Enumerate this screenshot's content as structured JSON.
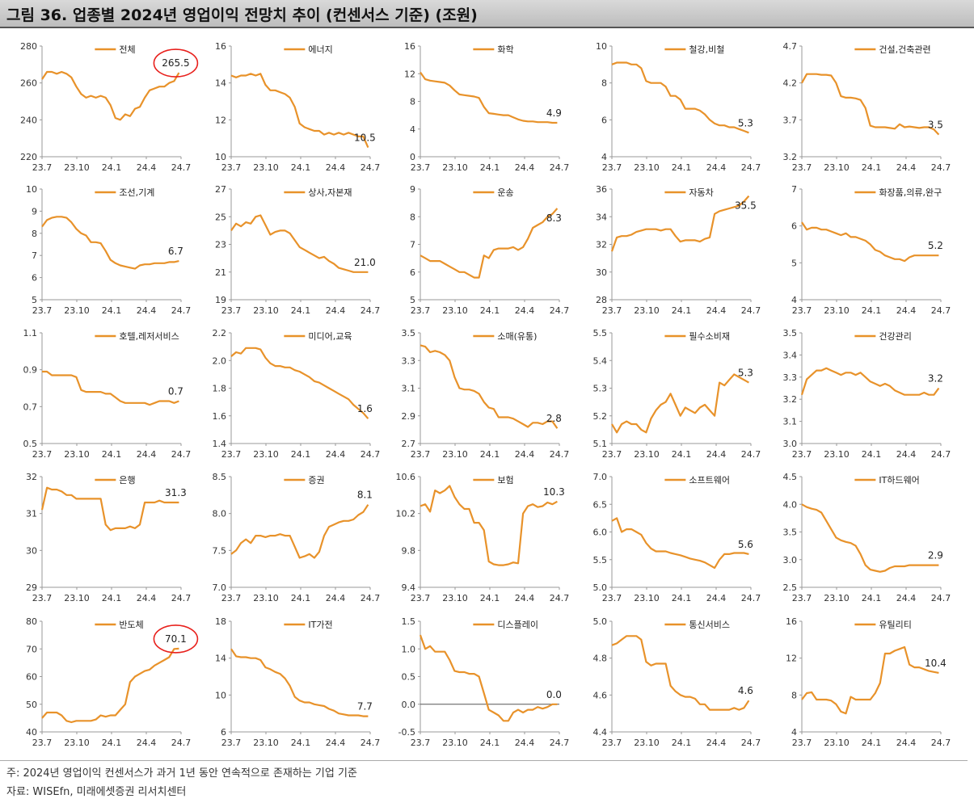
{
  "title": "그림 36. 업종별 2024년 영업이익 전망치 추이 (컨센서스 기준) (조원)",
  "footnote": "주: 2024년 영업이익 컨센서스가 과거 1년 동안 연속적으로 존재하는 기업 기준",
  "source": "자료: WISEfn, 미래에셋증권 리서치센터",
  "colors": {
    "line": "#E8922A",
    "annotation": "#E8201C",
    "axis": "#999999"
  },
  "chart_data": [
    {
      "type": "line",
      "title": "전체",
      "yticks": [
        "280",
        "260",
        "240",
        "220"
      ],
      "ylim": [
        220,
        280
      ],
      "xticks": [
        "23.7",
        "23.10",
        "24.1",
        "24.4",
        "24.7"
      ],
      "last_label": "265.5",
      "circled": true,
      "values": [
        262,
        266,
        266,
        265,
        266,
        265,
        263,
        258,
        254,
        252,
        253,
        252,
        253,
        252,
        248,
        241,
        240,
        243,
        242,
        246,
        247,
        252,
        256,
        257,
        258,
        258,
        260,
        261,
        265.5
      ]
    },
    {
      "type": "line",
      "title": "에너지",
      "yticks": [
        "16",
        "14",
        "12",
        "10"
      ],
      "ylim": [
        10,
        16
      ],
      "xticks": [
        "23.7",
        "23.10",
        "24.1",
        "24.4",
        "24.7"
      ],
      "last_label": "10.5",
      "circled": false,
      "values": [
        14.4,
        14.3,
        14.4,
        14.4,
        14.5,
        14.4,
        14.5,
        13.9,
        13.6,
        13.6,
        13.5,
        13.4,
        13.2,
        12.7,
        11.8,
        11.6,
        11.5,
        11.4,
        11.4,
        11.2,
        11.3,
        11.2,
        11.3,
        11.2,
        11.3,
        11.2,
        11.1,
        11.1,
        10.5
      ]
    },
    {
      "type": "line",
      "title": "화학",
      "yticks": [
        "16",
        "12",
        "8",
        "4",
        "0"
      ],
      "ylim": [
        0,
        16
      ],
      "xticks": [
        "23.7",
        "23.10",
        "24.1",
        "24.4",
        "24.7"
      ],
      "last_label": "4.9",
      "circled": false,
      "values": [
        12.2,
        11.2,
        11.0,
        10.9,
        10.8,
        10.7,
        10.3,
        9.6,
        9.0,
        8.9,
        8.8,
        8.7,
        8.5,
        7.2,
        6.3,
        6.2,
        6.1,
        6.0,
        6.0,
        5.7,
        5.4,
        5.2,
        5.1,
        5.1,
        5.0,
        5.0,
        5.0,
        4.9,
        4.9
      ]
    },
    {
      "type": "line",
      "title": "철강,비철",
      "yticks": [
        "10",
        "8",
        "6",
        "4"
      ],
      "ylim": [
        4,
        10
      ],
      "xticks": [
        "23.7",
        "23.10",
        "24.1",
        "24.4",
        "24.7"
      ],
      "last_label": "5.3",
      "circled": false,
      "values": [
        9.0,
        9.1,
        9.1,
        9.1,
        9.0,
        9.0,
        8.8,
        8.1,
        8.0,
        8.0,
        8.0,
        7.8,
        7.3,
        7.3,
        7.1,
        6.6,
        6.6,
        6.6,
        6.5,
        6.3,
        6.0,
        5.8,
        5.7,
        5.7,
        5.6,
        5.6,
        5.5,
        5.4,
        5.3
      ]
    },
    {
      "type": "line",
      "title": "건설,건축관련",
      "yticks": [
        "4.7",
        "4.2",
        "3.7",
        "3.2"
      ],
      "ylim": [
        3.2,
        4.7
      ],
      "xticks": [
        "23.7",
        "23.10",
        "24.1",
        "24.4",
        "24.7"
      ],
      "last_label": "3.5",
      "circled": false,
      "values": [
        4.2,
        4.32,
        4.32,
        4.32,
        4.31,
        4.31,
        4.3,
        4.2,
        4.02,
        4.0,
        4.0,
        3.99,
        3.97,
        3.86,
        3.62,
        3.6,
        3.6,
        3.6,
        3.59,
        3.58,
        3.64,
        3.6,
        3.61,
        3.6,
        3.59,
        3.6,
        3.6,
        3.57,
        3.5
      ]
    },
    {
      "type": "line",
      "title": "조선,기계",
      "yticks": [
        "10",
        "9",
        "8",
        "7",
        "6",
        "5"
      ],
      "ylim": [
        5,
        10
      ],
      "xticks": [
        "23.7",
        "23.10",
        "24.1",
        "24.4",
        "24.7"
      ],
      "last_label": "6.7",
      "circled": false,
      "values": [
        8.3,
        8.6,
        8.7,
        8.75,
        8.75,
        8.7,
        8.5,
        8.2,
        8.0,
        7.9,
        7.6,
        7.6,
        7.55,
        7.2,
        6.8,
        6.65,
        6.55,
        6.5,
        6.45,
        6.4,
        6.55,
        6.6,
        6.6,
        6.65,
        6.65,
        6.65,
        6.7,
        6.7,
        6.75
      ]
    },
    {
      "type": "line",
      "title": "상사,자본재",
      "yticks": [
        "27",
        "25",
        "23",
        "21",
        "19"
      ],
      "ylim": [
        19,
        27
      ],
      "xticks": [
        "23.7",
        "23.10",
        "24.1",
        "24.4",
        "24.7"
      ],
      "last_label": "21.0",
      "circled": false,
      "values": [
        24.0,
        24.5,
        24.3,
        24.6,
        24.5,
        25.0,
        25.1,
        24.4,
        23.7,
        23.9,
        24.0,
        24.0,
        23.8,
        23.3,
        22.8,
        22.6,
        22.4,
        22.2,
        22.0,
        22.1,
        21.8,
        21.6,
        21.3,
        21.2,
        21.1,
        21.0,
        21.0,
        21.0,
        21.0
      ]
    },
    {
      "type": "line",
      "title": "운송",
      "yticks": [
        "9",
        "8",
        "7",
        "6",
        "5"
      ],
      "ylim": [
        5,
        9
      ],
      "xticks": [
        "23.7",
        "23.10",
        "24.1",
        "24.4",
        "24.7"
      ],
      "last_label": "8.3",
      "circled": false,
      "values": [
        6.6,
        6.5,
        6.4,
        6.4,
        6.4,
        6.3,
        6.2,
        6.1,
        6.0,
        6.0,
        5.9,
        5.8,
        5.8,
        6.6,
        6.5,
        6.8,
        6.85,
        6.85,
        6.85,
        6.9,
        6.8,
        6.9,
        7.2,
        7.6,
        7.7,
        7.8,
        8.0,
        8.1,
        8.3
      ]
    },
    {
      "type": "line",
      "title": "자동차",
      "yticks": [
        "36",
        "34",
        "32",
        "30",
        "28"
      ],
      "ylim": [
        28,
        36
      ],
      "xticks": [
        "23.7",
        "23.10",
        "24.1",
        "24.4",
        "24.7"
      ],
      "last_label": "35.5",
      "circled": false,
      "values": [
        31.5,
        32.5,
        32.6,
        32.6,
        32.7,
        32.9,
        33.0,
        33.1,
        33.1,
        33.1,
        33.0,
        33.1,
        33.1,
        32.6,
        32.2,
        32.3,
        32.3,
        32.3,
        32.2,
        32.4,
        32.5,
        34.2,
        34.4,
        34.5,
        34.6,
        34.7,
        34.8,
        35.1,
        35.5
      ]
    },
    {
      "type": "line",
      "title": "화장품,의류,완구",
      "yticks": [
        "7",
        "6",
        "5",
        "4"
      ],
      "ylim": [
        4,
        7
      ],
      "xticks": [
        "23.7",
        "23.10",
        "24.1",
        "24.4",
        "24.7"
      ],
      "last_label": "5.2",
      "circled": false,
      "values": [
        6.1,
        5.9,
        5.95,
        5.95,
        5.9,
        5.9,
        5.85,
        5.8,
        5.75,
        5.8,
        5.7,
        5.7,
        5.65,
        5.6,
        5.5,
        5.35,
        5.3,
        5.2,
        5.15,
        5.1,
        5.1,
        5.05,
        5.15,
        5.2,
        5.2,
        5.2,
        5.2,
        5.2,
        5.2
      ]
    },
    {
      "type": "line",
      "title": "호텔,레저서비스",
      "yticks": [
        "1.1",
        "0.9",
        "0.7",
        "0.5"
      ],
      "ylim": [
        0.5,
        1.1
      ],
      "xticks": [
        "23.7",
        "23.10",
        "24.1",
        "24.4",
        "24.7"
      ],
      "last_label": "0.7",
      "circled": false,
      "values": [
        0.89,
        0.89,
        0.87,
        0.87,
        0.87,
        0.87,
        0.87,
        0.86,
        0.79,
        0.78,
        0.78,
        0.78,
        0.78,
        0.77,
        0.77,
        0.75,
        0.73,
        0.72,
        0.72,
        0.72,
        0.72,
        0.72,
        0.71,
        0.72,
        0.73,
        0.73,
        0.73,
        0.72,
        0.73
      ]
    },
    {
      "type": "line",
      "title": "미디어,교육",
      "yticks": [
        "2.2",
        "2.0",
        "1.8",
        "1.6",
        "1.4"
      ],
      "ylim": [
        1.4,
        2.2
      ],
      "xticks": [
        "23.7",
        "23.10",
        "24.1",
        "24.4",
        "24.7"
      ],
      "last_label": "1.6",
      "circled": false,
      "values": [
        2.03,
        2.06,
        2.05,
        2.09,
        2.09,
        2.09,
        2.08,
        2.02,
        1.98,
        1.96,
        1.96,
        1.95,
        1.95,
        1.93,
        1.92,
        1.9,
        1.88,
        1.85,
        1.84,
        1.82,
        1.8,
        1.78,
        1.76,
        1.74,
        1.72,
        1.68,
        1.65,
        1.62,
        1.58
      ]
    },
    {
      "type": "line",
      "title": "소매(유통)",
      "yticks": [
        "3.5",
        "3.3",
        "3.1",
        "2.9",
        "2.7"
      ],
      "ylim": [
        2.7,
        3.5
      ],
      "xticks": [
        "23.7",
        "23.10",
        "24.1",
        "24.4",
        "24.7"
      ],
      "last_label": "2.8",
      "circled": false,
      "values": [
        3.41,
        3.4,
        3.36,
        3.37,
        3.36,
        3.34,
        3.3,
        3.18,
        3.1,
        3.09,
        3.09,
        3.08,
        3.06,
        3.0,
        2.96,
        2.95,
        2.89,
        2.89,
        2.89,
        2.88,
        2.86,
        2.84,
        2.82,
        2.85,
        2.85,
        2.84,
        2.86,
        2.86,
        2.81
      ]
    },
    {
      "type": "line",
      "title": "필수소비재",
      "yticks": [
        "5.5",
        "5.4",
        "5.3",
        "5.2",
        "5.1"
      ],
      "ylim": [
        5.1,
        5.5
      ],
      "xticks": [
        "23.7",
        "23.10",
        "24.1",
        "24.4",
        "24.7"
      ],
      "last_label": "5.3",
      "circled": false,
      "values": [
        5.17,
        5.14,
        5.17,
        5.18,
        5.17,
        5.17,
        5.15,
        5.14,
        5.19,
        5.22,
        5.24,
        5.25,
        5.28,
        5.24,
        5.2,
        5.23,
        5.22,
        5.21,
        5.23,
        5.24,
        5.22,
        5.2,
        5.32,
        5.31,
        5.33,
        5.35,
        5.34,
        5.33,
        5.32
      ]
    },
    {
      "type": "line",
      "title": "건강관리",
      "yticks": [
        "3.5",
        "3.4",
        "3.3",
        "3.2",
        "3.1",
        "3.0"
      ],
      "ylim": [
        3.0,
        3.5
      ],
      "xticks": [
        "23.7",
        "23.10",
        "24.1",
        "24.4",
        "24.7"
      ],
      "last_label": "3.2",
      "circled": false,
      "values": [
        3.22,
        3.29,
        3.31,
        3.33,
        3.33,
        3.34,
        3.33,
        3.32,
        3.31,
        3.32,
        3.32,
        3.31,
        3.32,
        3.3,
        3.28,
        3.27,
        3.26,
        3.27,
        3.26,
        3.24,
        3.23,
        3.22,
        3.22,
        3.22,
        3.22,
        3.23,
        3.22,
        3.22,
        3.25
      ]
    },
    {
      "type": "line",
      "title": "은행",
      "yticks": [
        "32",
        "31",
        "30",
        "29"
      ],
      "ylim": [
        29,
        32
      ],
      "xticks": [
        "23.7",
        "23.10",
        "24.1",
        "24.4",
        "24.7"
      ],
      "last_label": "31.3",
      "circled": false,
      "values": [
        31.1,
        31.7,
        31.65,
        31.65,
        31.6,
        31.5,
        31.5,
        31.4,
        31.4,
        31.4,
        31.4,
        31.4,
        31.4,
        30.7,
        30.55,
        30.6,
        30.6,
        30.6,
        30.65,
        30.6,
        30.7,
        31.3,
        31.3,
        31.3,
        31.35,
        31.3,
        31.3,
        31.3,
        31.3
      ]
    },
    {
      "type": "line",
      "title": "증권",
      "yticks": [
        "8.5",
        "8.0",
        "7.5",
        "7.0"
      ],
      "ylim": [
        7.0,
        8.5
      ],
      "xticks": [
        "23.7",
        "23.10",
        "24.1",
        "24.4",
        "24.7"
      ],
      "last_label": "8.1",
      "circled": false,
      "values": [
        7.45,
        7.5,
        7.6,
        7.65,
        7.6,
        7.7,
        7.7,
        7.68,
        7.7,
        7.7,
        7.72,
        7.7,
        7.7,
        7.55,
        7.4,
        7.42,
        7.45,
        7.4,
        7.48,
        7.7,
        7.82,
        7.85,
        7.88,
        7.9,
        7.9,
        7.92,
        7.98,
        8.02,
        8.12
      ]
    },
    {
      "type": "line",
      "title": "보험",
      "yticks": [
        "10.6",
        "10.2",
        "9.8",
        "9.4"
      ],
      "ylim": [
        9.4,
        10.6
      ],
      "xticks": [
        "23.7",
        "23.10",
        "24.1",
        "24.4",
        "24.7"
      ],
      "last_label": "10.3",
      "circled": false,
      "values": [
        10.28,
        10.3,
        10.22,
        10.45,
        10.42,
        10.45,
        10.5,
        10.38,
        10.3,
        10.25,
        10.25,
        10.1,
        10.1,
        10.02,
        9.68,
        9.65,
        9.64,
        9.64,
        9.65,
        9.67,
        9.66,
        10.2,
        10.28,
        10.3,
        10.27,
        10.28,
        10.32,
        10.3,
        10.33
      ]
    },
    {
      "type": "line",
      "title": "소프트웨어",
      "yticks": [
        "7.0",
        "6.5",
        "6.0",
        "5.5",
        "5.0"
      ],
      "ylim": [
        5.0,
        7.0
      ],
      "xticks": [
        "23.7",
        "23.10",
        "24.1",
        "24.4",
        "24.7"
      ],
      "last_label": "5.6",
      "circled": false,
      "values": [
        6.2,
        6.25,
        6.0,
        6.05,
        6.05,
        6.0,
        5.95,
        5.8,
        5.7,
        5.65,
        5.65,
        5.65,
        5.62,
        5.6,
        5.58,
        5.55,
        5.52,
        5.5,
        5.48,
        5.45,
        5.4,
        5.35,
        5.5,
        5.6,
        5.6,
        5.62,
        5.62,
        5.62,
        5.6
      ]
    },
    {
      "type": "line",
      "title": "IT하드웨어",
      "yticks": [
        "4.5",
        "4.0",
        "3.5",
        "3.0",
        "2.5"
      ],
      "ylim": [
        2.5,
        4.5
      ],
      "xticks": [
        "23.7",
        "23.10",
        "24.1",
        "24.4",
        "24.7"
      ],
      "last_label": "2.9",
      "circled": false,
      "values": [
        4.0,
        3.95,
        3.92,
        3.9,
        3.85,
        3.7,
        3.55,
        3.4,
        3.35,
        3.32,
        3.3,
        3.25,
        3.1,
        2.9,
        2.82,
        2.8,
        2.78,
        2.8,
        2.85,
        2.88,
        2.88,
        2.88,
        2.9,
        2.9,
        2.9,
        2.9,
        2.9,
        2.9,
        2.9
      ]
    },
    {
      "type": "line",
      "title": "반도체",
      "yticks": [
        "80",
        "70",
        "60",
        "50",
        "40"
      ],
      "ylim": [
        40,
        80
      ],
      "xticks": [
        "23.7",
        "23.10",
        "24.1",
        "24.4",
        "24.7"
      ],
      "last_label": "70.1",
      "circled": true,
      "values": [
        45,
        47,
        47,
        47,
        46,
        44,
        43.5,
        44,
        44,
        44,
        44,
        44.5,
        46,
        45.5,
        46,
        46,
        48,
        50,
        58,
        60,
        61,
        62,
        62.5,
        64,
        65,
        66,
        67,
        70,
        70.1
      ]
    },
    {
      "type": "line",
      "title": "IT가전",
      "yticks": [
        "18",
        "14",
        "10",
        "6"
      ],
      "ylim": [
        6,
        18
      ],
      "xticks": [
        "23.7",
        "23.10",
        "24.1",
        "24.4",
        "24.7"
      ],
      "last_label": "7.7",
      "circled": false,
      "values": [
        15.0,
        14.2,
        14.1,
        14.1,
        14.0,
        14.0,
        13.8,
        13.0,
        12.8,
        12.5,
        12.3,
        11.8,
        11.0,
        9.8,
        9.4,
        9.2,
        9.2,
        9.0,
        8.9,
        8.8,
        8.5,
        8.3,
        8.0,
        7.9,
        7.8,
        7.8,
        7.8,
        7.7,
        7.7
      ]
    },
    {
      "type": "line",
      "title": "디스플레이",
      "yticks": [
        "1.5",
        "1.0",
        "0.5",
        "0.0",
        "-0.5"
      ],
      "ylim": [
        -0.5,
        1.5
      ],
      "xticks": [
        "23.7",
        "23.10",
        "24.1",
        "24.4",
        "24.7"
      ],
      "last_label": "0.0",
      "circled": false,
      "values": [
        1.25,
        1.0,
        1.05,
        0.95,
        0.95,
        0.95,
        0.8,
        0.6,
        0.58,
        0.58,
        0.55,
        0.55,
        0.5,
        0.2,
        -0.1,
        -0.15,
        -0.2,
        -0.3,
        -0.3,
        -0.15,
        -0.1,
        -0.15,
        -0.1,
        -0.1,
        -0.05,
        -0.08,
        -0.05,
        0.0,
        0.0
      ]
    },
    {
      "type": "line",
      "title": "통신서비스",
      "yticks": [
        "5.0",
        "4.8",
        "4.6",
        "4.4"
      ],
      "ylim": [
        4.4,
        5.0
      ],
      "xticks": [
        "23.7",
        "23.10",
        "24.1",
        "24.4",
        "24.7"
      ],
      "last_label": "4.6",
      "circled": false,
      "values": [
        4.87,
        4.88,
        4.9,
        4.92,
        4.92,
        4.92,
        4.9,
        4.78,
        4.76,
        4.77,
        4.77,
        4.77,
        4.65,
        4.62,
        4.6,
        4.59,
        4.59,
        4.58,
        4.55,
        4.55,
        4.52,
        4.52,
        4.52,
        4.52,
        4.52,
        4.53,
        4.52,
        4.53,
        4.57
      ]
    },
    {
      "type": "line",
      "title": "유틸리티",
      "yticks": [
        "16",
        "12",
        "8",
        "4"
      ],
      "ylim": [
        4,
        16
      ],
      "xticks": [
        "23.7",
        "23.10",
        "24.1",
        "24.4",
        "24.7"
      ],
      "last_label": "10.4",
      "circled": false,
      "values": [
        7.5,
        8.2,
        8.3,
        7.5,
        7.5,
        7.5,
        7.4,
        7.0,
        6.2,
        6.0,
        7.8,
        7.5,
        7.5,
        7.5,
        7.5,
        8.2,
        9.3,
        12.5,
        12.5,
        12.8,
        13.0,
        13.2,
        11.3,
        11.0,
        11.0,
        10.8,
        10.6,
        10.5,
        10.4
      ]
    }
  ]
}
